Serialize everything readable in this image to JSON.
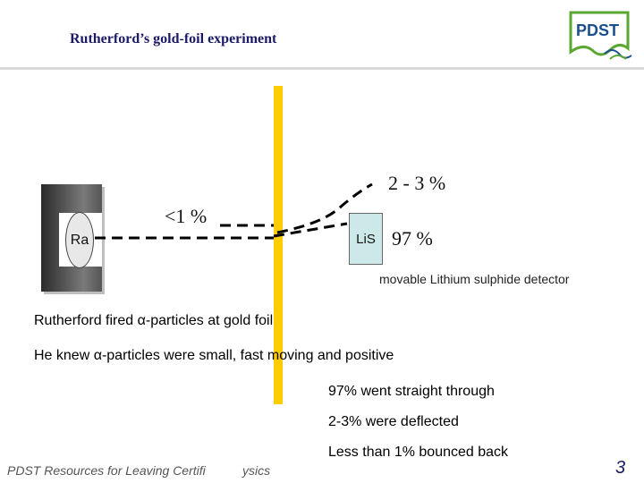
{
  "header": {
    "title": "Rutherford’s gold-foil experiment",
    "logo_text": "PDST"
  },
  "diagram": {
    "source_label": "Ra",
    "detector_label": "LiS",
    "label_deflected": "2 - 3 %",
    "label_back": "<1 %",
    "label_straight": "97 %",
    "detector_caption": "movable Lithium sulphide detector"
  },
  "statements": {
    "line1": "Rutherford fired α-particles at gold foil",
    "line2": "He knew α-particles were small, fast moving and positive",
    "line3": "97% went straight through",
    "line4": "2-3% were deflected",
    "line5": "Less than 1% bounced back"
  },
  "footer": {
    "text": "PDST Resources for Leaving Certifi",
    "text_tail": "ysics",
    "page_number": "3"
  },
  "colors": {
    "foil": "#ffcc00",
    "detector": "#cce8e8",
    "title": "#1a1a66"
  }
}
